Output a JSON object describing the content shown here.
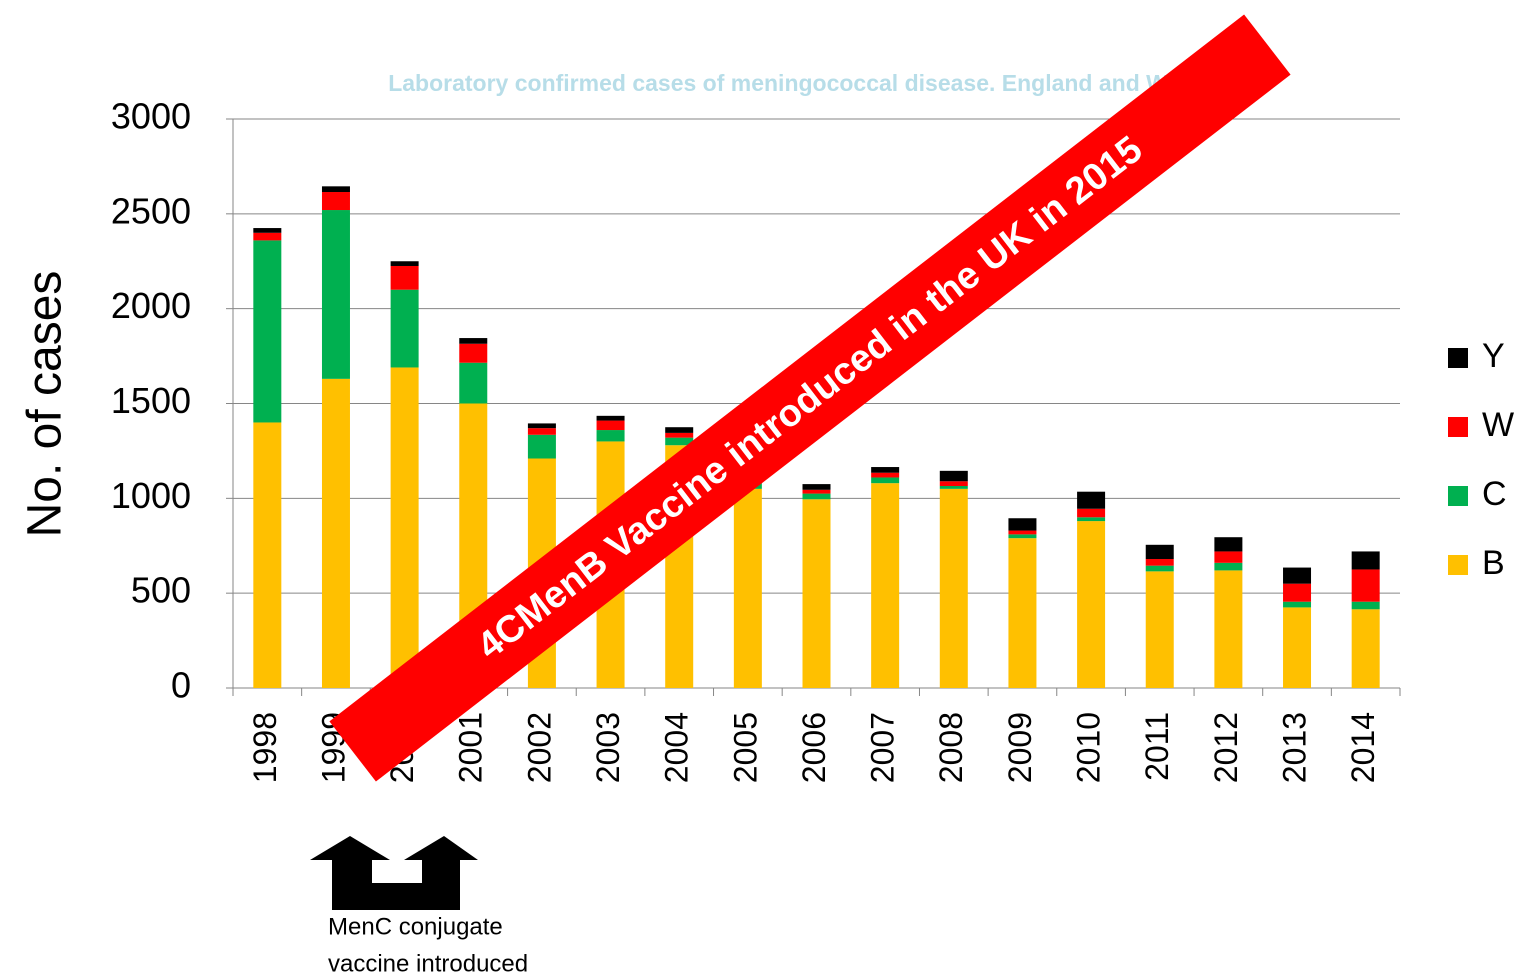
{
  "chart_data": {
    "type": "stacked_bar",
    "title": "Laboratory confirmed cases of meningococcal disease. England and Wales",
    "y_label": "No. of cases",
    "categories": [
      "1998",
      "1999",
      "2000",
      "2001",
      "2002",
      "2003",
      "2004",
      "2005",
      "2006",
      "2007",
      "2008",
      "2009",
      "2010",
      "2011",
      "2012",
      "2013",
      "2014"
    ],
    "series": [
      {
        "name": "B",
        "color": "#ffc000",
        "values": [
          1400,
          1630,
          1690,
          1500,
          1210,
          1300,
          1280,
          1050,
          995,
          1080,
          1050,
          790,
          880,
          615,
          620,
          425,
          415
        ]
      },
      {
        "name": "C",
        "color": "#00b050",
        "values": [
          960,
          890,
          410,
          215,
          125,
          60,
          40,
          30,
          30,
          30,
          15,
          20,
          20,
          30,
          40,
          30,
          40
        ]
      },
      {
        "name": "W",
        "color": "#ff0000",
        "values": [
          40,
          95,
          125,
          100,
          35,
          50,
          25,
          20,
          20,
          25,
          25,
          20,
          45,
          35,
          60,
          95,
          170
        ]
      },
      {
        "name": "Y",
        "color": "#000000",
        "values": [
          25,
          30,
          25,
          30,
          25,
          25,
          30,
          20,
          30,
          30,
          55,
          65,
          90,
          75,
          75,
          85,
          95
        ]
      }
    ],
    "ylim": [
      0,
      3000
    ],
    "yticks": [
      0,
      500,
      1000,
      1500,
      2000,
      2500,
      3000
    ],
    "grid": true,
    "annotations": [
      "4CMenB Vaccine introduced in the UK in 2015",
      "MenC conjugate",
      "vaccine introduced"
    ]
  }
}
